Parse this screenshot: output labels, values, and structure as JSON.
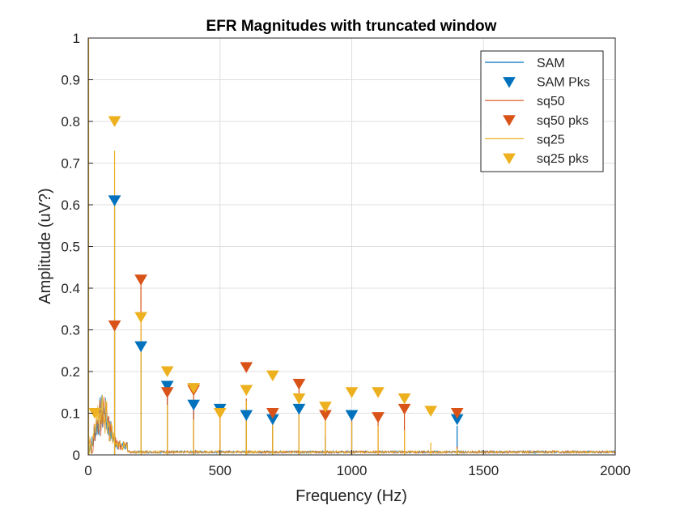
{
  "chart_data": {
    "type": "line",
    "title": "EFR Magnitudes with truncated window",
    "xlabel": "Frequency (Hz)",
    "ylabel": "Amplitude (uV?)",
    "xlim": [
      0,
      2000
    ],
    "ylim": [
      0,
      1
    ],
    "xticks": [
      0,
      500,
      1000,
      1500,
      2000
    ],
    "yticks": [
      0,
      0.1,
      0.2,
      0.3,
      0.4,
      0.5,
      0.6,
      0.7,
      0.8,
      0.9,
      1
    ],
    "grid": true,
    "legend_position": "top-right",
    "series": [
      {
        "name": "SAM",
        "kind": "line",
        "color": "#0072BD",
        "spikes": [
          [
            100,
            0.6
          ],
          [
            200,
            0.25
          ],
          [
            300,
            0.15
          ],
          [
            400,
            0.11
          ],
          [
            500,
            0.04
          ],
          [
            600,
            0.09
          ],
          [
            700,
            0.07
          ],
          [
            800,
            0.1
          ],
          [
            900,
            0.045
          ],
          [
            1000,
            0.09
          ],
          [
            1400,
            0.07
          ]
        ]
      },
      {
        "name": "SAM Pks",
        "kind": "markers",
        "color": "#0072BD",
        "points": [
          [
            100,
            0.61
          ],
          [
            200,
            0.26
          ],
          [
            300,
            0.165
          ],
          [
            400,
            0.12
          ],
          [
            500,
            0.11
          ],
          [
            600,
            0.095
          ],
          [
            700,
            0.085
          ],
          [
            800,
            0.11
          ],
          [
            1000,
            0.095
          ],
          [
            1400,
            0.085
          ]
        ]
      },
      {
        "name": "sq50",
        "kind": "line",
        "color": "#D95319",
        "spikes": [
          [
            100,
            0.3
          ],
          [
            200,
            0.41
          ],
          [
            300,
            0.14
          ],
          [
            400,
            0.15
          ],
          [
            500,
            0.09
          ],
          [
            600,
            0.135
          ],
          [
            700,
            0.09
          ],
          [
            800,
            0.16
          ],
          [
            900,
            0.09
          ],
          [
            1000,
            0.09
          ],
          [
            1100,
            0.085
          ],
          [
            1200,
            0.1
          ],
          [
            1400,
            0.02
          ]
        ]
      },
      {
        "name": "sq50 pks",
        "kind": "markers",
        "color": "#D95319",
        "points": [
          [
            100,
            0.31
          ],
          [
            200,
            0.42
          ],
          [
            300,
            0.15
          ],
          [
            400,
            0.155
          ],
          [
            600,
            0.21
          ],
          [
            700,
            0.1
          ],
          [
            800,
            0.17
          ],
          [
            900,
            0.095
          ],
          [
            1100,
            0.09
          ],
          [
            1200,
            0.11
          ],
          [
            1400,
            0.1
          ]
        ]
      },
      {
        "name": "sq25",
        "kind": "line",
        "color": "#EDB120",
        "spikes": [
          [
            100,
            0.73
          ],
          [
            200,
            0.33
          ],
          [
            300,
            0.12
          ],
          [
            400,
            0.085
          ],
          [
            500,
            0.085
          ],
          [
            600,
            0.13
          ],
          [
            700,
            0.09
          ],
          [
            800,
            0.11
          ],
          [
            900,
            0.1
          ],
          [
            1000,
            0.08
          ],
          [
            1100,
            0.07
          ],
          [
            1200,
            0.06
          ],
          [
            1300,
            0.03
          ],
          [
            1400,
            0.015
          ]
        ]
      },
      {
        "name": "sq25 pks",
        "kind": "markers",
        "color": "#EDB120",
        "points": [
          [
            25,
            0.1
          ],
          [
            100,
            0.8
          ],
          [
            200,
            0.33
          ],
          [
            300,
            0.2
          ],
          [
            400,
            0.16
          ],
          [
            500,
            0.1
          ],
          [
            600,
            0.155
          ],
          [
            700,
            0.19
          ],
          [
            800,
            0.135
          ],
          [
            900,
            0.115
          ],
          [
            1000,
            0.15
          ],
          [
            1100,
            0.15
          ],
          [
            1200,
            0.135
          ],
          [
            1300,
            0.105
          ]
        ]
      }
    ]
  }
}
